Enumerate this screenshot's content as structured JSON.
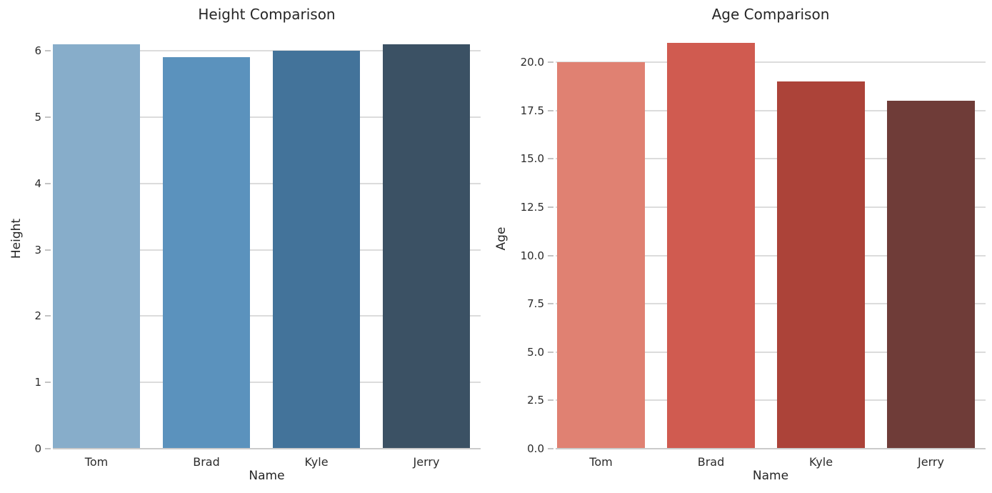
{
  "figure": {
    "background_color": "#ffffff",
    "text_color": "#262626",
    "tick_text_color": "#2b2b2b",
    "grid_color": "#dcdcdc",
    "spine_color": "#cbcbcb",
    "tick_mark_color": "#c3c3c3"
  },
  "chart_data": [
    {
      "type": "bar",
      "title": "Height Comparison",
      "xlabel": "Name",
      "ylabel": "Height",
      "categories": [
        "Tom",
        "Brad",
        "Kyle",
        "Jerry"
      ],
      "values": [
        6.1,
        5.9,
        6.0,
        6.1
      ],
      "bar_colors": [
        "#87adca",
        "#5b92bd",
        "#43739a",
        "#3b5164"
      ],
      "yticks": [
        0,
        1,
        2,
        3,
        4,
        5,
        6
      ],
      "ytick_labels": [
        "0",
        "1",
        "2",
        "3",
        "4",
        "5",
        "6"
      ],
      "ylim": [
        0,
        6.336
      ],
      "grid": true,
      "legend": null
    },
    {
      "type": "bar",
      "title": "Age Comparison",
      "xlabel": "Name",
      "ylabel": "Age",
      "categories": [
        "Tom",
        "Brad",
        "Kyle",
        "Jerry"
      ],
      "values": [
        20,
        21,
        19,
        18
      ],
      "bar_colors": [
        "#e08172",
        "#d05b50",
        "#ac4339",
        "#6f3c38"
      ],
      "yticks": [
        0,
        2.5,
        5,
        7.5,
        10,
        12.5,
        15,
        17.5,
        20
      ],
      "ytick_labels": [
        "0.0",
        "2.5",
        "5.0",
        "7.5",
        "10.0",
        "12.5",
        "15.0",
        "17.5",
        "20.0"
      ],
      "ylim": [
        0,
        21.74
      ],
      "grid": true,
      "legend": null
    }
  ]
}
